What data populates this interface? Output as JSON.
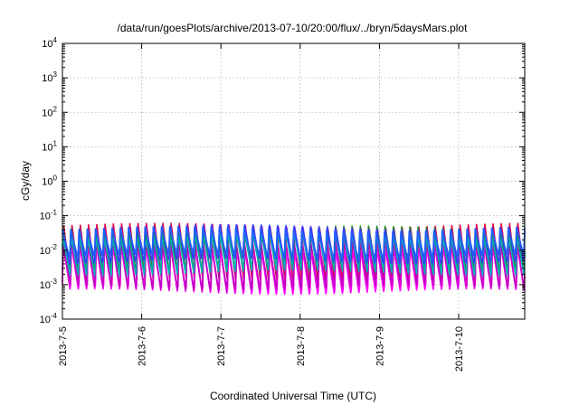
{
  "chart_data": {
    "type": "line",
    "title": "/data/run/goesPlots/archive/2013-07-10/20:00/flux/../bryn/5daysMars.plot",
    "xlabel": "Coordinated Universal Time (UTC)",
    "ylabel": "cGy/day",
    "yscale": "log",
    "ylim": [
      0.0001,
      10000
    ],
    "xlim": [
      "2013-07-05 00:00",
      "2013-07-10 20:00"
    ],
    "grid": true,
    "x_ticks": [
      "2013-7-5",
      "2013-7-6",
      "2013-7-7",
      "2013-7-8",
      "2013-7-9",
      "2013-7-10"
    ],
    "y_ticks": [
      {
        "base": "10",
        "exp": "-4",
        "value": 0.0001
      },
      {
        "base": "10",
        "exp": "-3",
        "value": 0.001
      },
      {
        "base": "10",
        "exp": "-2",
        "value": 0.01
      },
      {
        "base": "10",
        "exp": "-1",
        "value": 0.1
      },
      {
        "base": "10",
        "exp": "0",
        "value": 1
      },
      {
        "base": "10",
        "exp": "1",
        "value": 10
      },
      {
        "base": "10",
        "exp": "2",
        "value": 100
      },
      {
        "base": "10",
        "exp": "3",
        "value": 1000
      },
      {
        "base": "10",
        "exp": "4",
        "value": 10000
      }
    ],
    "sawtooth_period_hours": 2.5,
    "series": [
      {
        "color": "#e0004a",
        "peak": 0.062,
        "trough": 0.0012
      },
      {
        "color": "#ff00ff",
        "peak": 0.012,
        "trough": 0.0005
      },
      {
        "color": "#c000c0",
        "peak": 0.018,
        "trough": 0.0007
      },
      {
        "color": "#1a8f1a",
        "peak": 0.045,
        "trough": 0.0025
      },
      {
        "color": "#00b0b0",
        "peak": 0.03,
        "trough": 0.0022
      },
      {
        "color": "#3a3aff",
        "peak": 0.055,
        "trough": 0.004
      },
      {
        "color": "#2060ff",
        "peak": 0.04,
        "trough": 0.006
      }
    ]
  }
}
